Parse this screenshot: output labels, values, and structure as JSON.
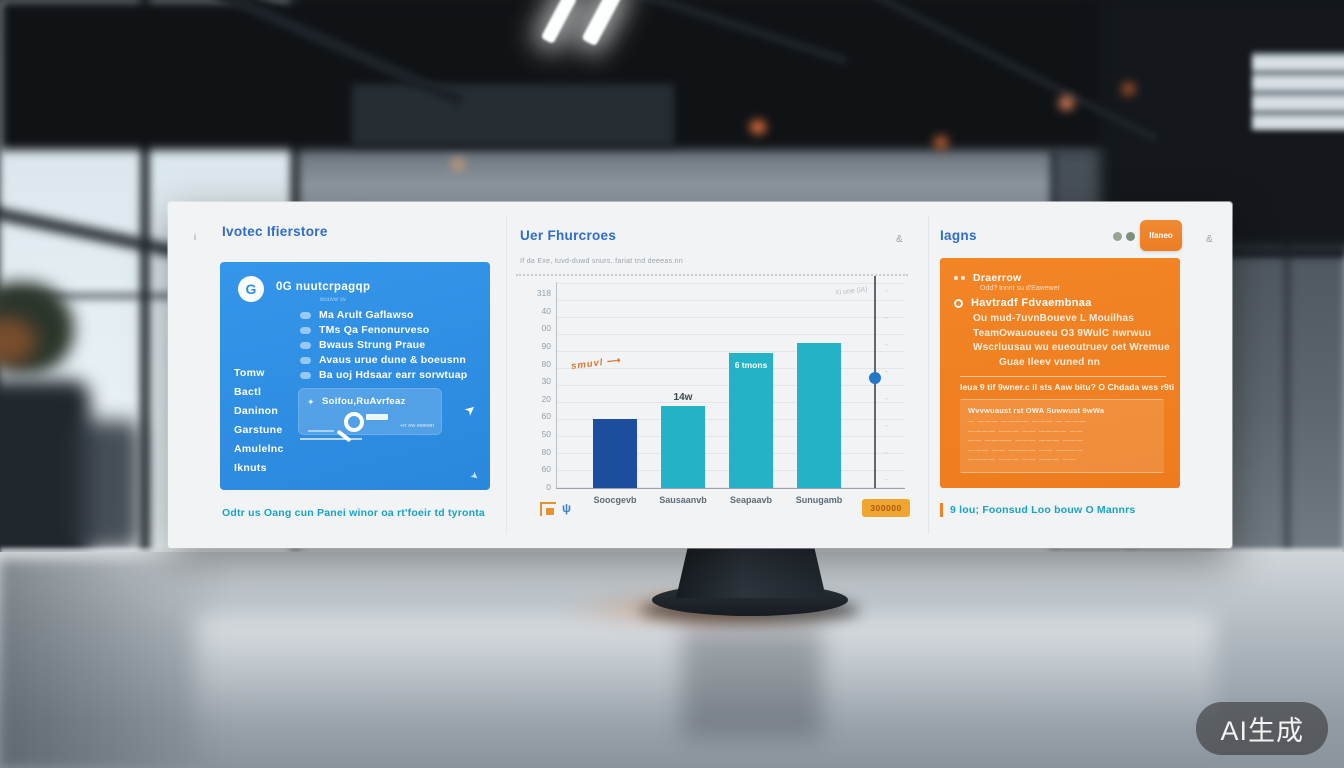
{
  "watermark": {
    "label": "AI生成"
  },
  "screen": {
    "left_panel": {
      "marker": "i",
      "title": "Ivotec Ifierstore",
      "card": {
        "avatar": "G",
        "heading": "0G nuutcrpagqp",
        "subheading": "wuuvw sv",
        "features": [
          "Ma Arult Gaflawso",
          "TMs Qa Fenonurveso",
          "Bwaus Strung Praue",
          "Avaus urue dune & boeusnn",
          "Ba uoj Hdsaar earr sorwtuap"
        ],
        "menu": [
          "Tomw",
          "Bactl",
          "Daninon",
          "Garstune",
          "Amulelnc",
          "Iknuts"
        ],
        "search": {
          "icon": "✦",
          "label": "Soifou,RuAvrfeaz",
          "hint": "+rr ew ewewn"
        },
        "arrow": "➤",
        "corner_arrow": "➤"
      },
      "caption": "Odtr us Oang cun Panei winor oa rt'foeir td tyronta"
    },
    "chart_panel": {
      "title": "Uer Fhurcroes",
      "corner_glyph": "&",
      "subtitle": "If da Exe, tuvd-duwd snurs..fariat tnd deeeas.nn",
      "annotation": "smuvl",
      "annotation_arrow": "⟶",
      "axis_note": "Xi une (iA)",
      "footer_glyph": "ψ",
      "badge": "300000",
      "chart_data": {
        "type": "bar",
        "title": "Uer Fhurcroes",
        "categories": [
          "Soocgevb",
          "Sausaanvb",
          "Seapaavb",
          "Sunugamb"
        ],
        "values": [
          110,
          130,
          215,
          230
        ],
        "bar_colors": [
          "#1d4e9e",
          "#23b2c6",
          "#23b2c6",
          "#23b2c6"
        ],
        "bar_labels": [
          {
            "index": 1,
            "text": "14w",
            "position": "above"
          },
          {
            "index": 2,
            "text": "6 tmons",
            "position": "inside"
          }
        ],
        "y_ticks": [
          "318",
          "40",
          "00",
          "90",
          "80",
          "30",
          "20",
          "60",
          "50",
          "80",
          "60",
          "0"
        ],
        "right_ticks": [
          "-",
          "-",
          "-",
          "-",
          "-",
          "-",
          "-",
          "-"
        ],
        "ylim": [
          0,
          318
        ],
        "marker_value": 175,
        "xlabel": "",
        "ylabel": "",
        "grid": true,
        "legend_position": "none"
      }
    },
    "right_panel": {
      "title": "Iagns",
      "button_label": "Ifaneo",
      "corner_glyph": "&",
      "card": {
        "head1": "Draerrow",
        "head1_sub": "Odd? tnnnt su d'Eawewer",
        "head2": "Havtradf Fdvaembnaa",
        "lines": [
          "Ou mud-7uvnBoueve L Mouilhas",
          "TeamOwauoueeu O3 9WulC nwrwuu",
          "Wscrluusau wu eueoutruev oet Wremue",
          "Guae Ileev vuned nn"
        ],
        "note": "Ieua 9 tif 9wner.c il sts Aaw bitu? O Chdada wss r9ti",
        "table_title": "Wvvwuaust rst OWA Suwwust 9wWa",
        "table_rows": [
          "— ——— ———— ——— — ———",
          "———— ——— —— ———— ——",
          "—— ———— ——— ——— ———",
          "——— —— ———— —— ————",
          "———— ——— —— ——— ——"
        ]
      },
      "caption": "9 lou; Foonsud Loo bouw O Mannrs"
    }
  },
  "colors": {
    "accent_blue": "#2e8ee3",
    "accent_orange": "#ef7f22",
    "title_blue": "#2f6cc9",
    "caption_teal": "#16a3c6",
    "bar_teal": "#23b2c6",
    "bar_navy": "#1d4e9e"
  }
}
